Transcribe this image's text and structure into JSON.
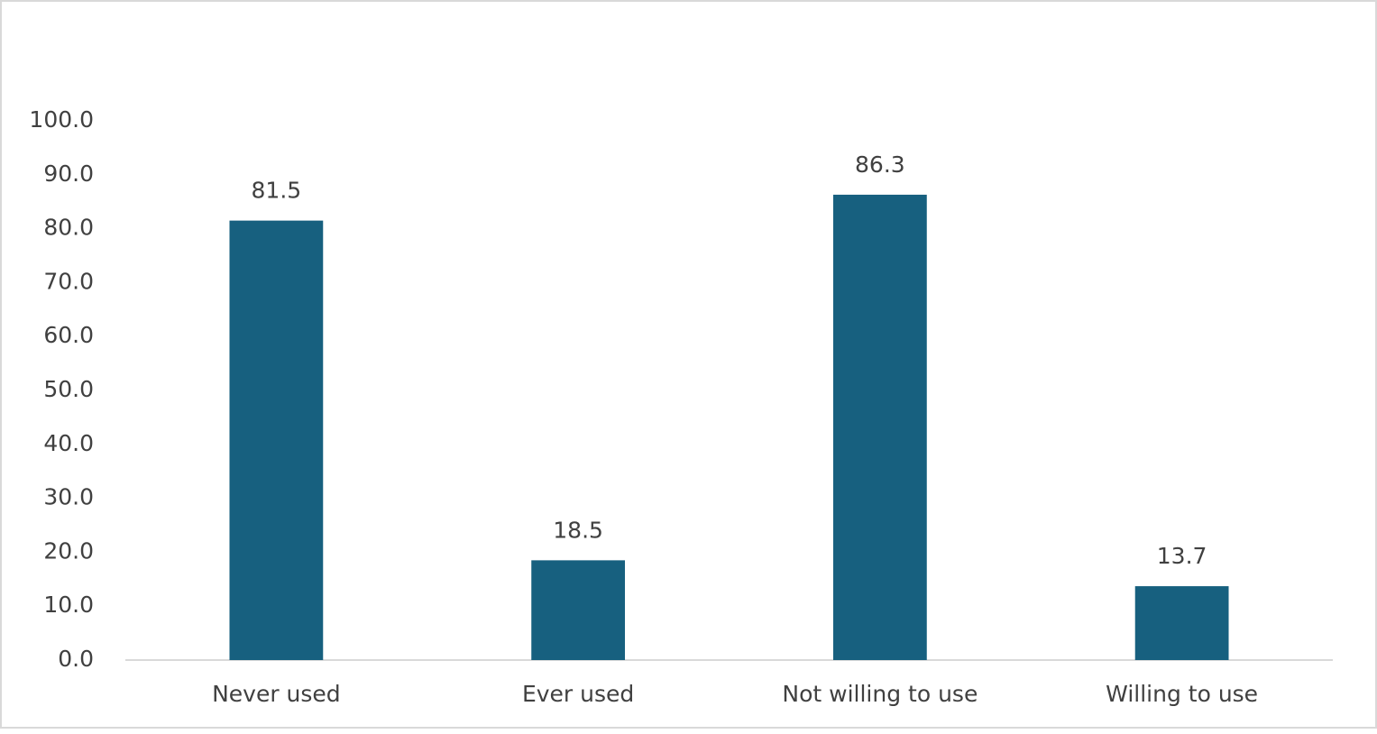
{
  "chart_data": {
    "type": "bar",
    "categories": [
      "Never used",
      "Ever used",
      "Not willing to use",
      "Willing to use"
    ],
    "values": [
      81.5,
      18.5,
      86.3,
      13.7
    ],
    "color": "#17607f",
    "ylim": [
      0,
      100
    ],
    "yticks": [
      {
        "value": 0,
        "label": "0.0"
      },
      {
        "value": 10,
        "label": "10.0"
      },
      {
        "value": 20,
        "label": "20.0"
      },
      {
        "value": 30,
        "label": "30.0"
      },
      {
        "value": 40,
        "label": "40.0"
      },
      {
        "value": 50,
        "label": "50.0"
      },
      {
        "value": 60,
        "label": "60.0"
      },
      {
        "value": 70,
        "label": "70.0"
      },
      {
        "value": 80,
        "label": "80.0"
      },
      {
        "value": 90,
        "label": "90.0"
      },
      {
        "value": 100,
        "label": "100.0"
      }
    ],
    "grid": false
  }
}
